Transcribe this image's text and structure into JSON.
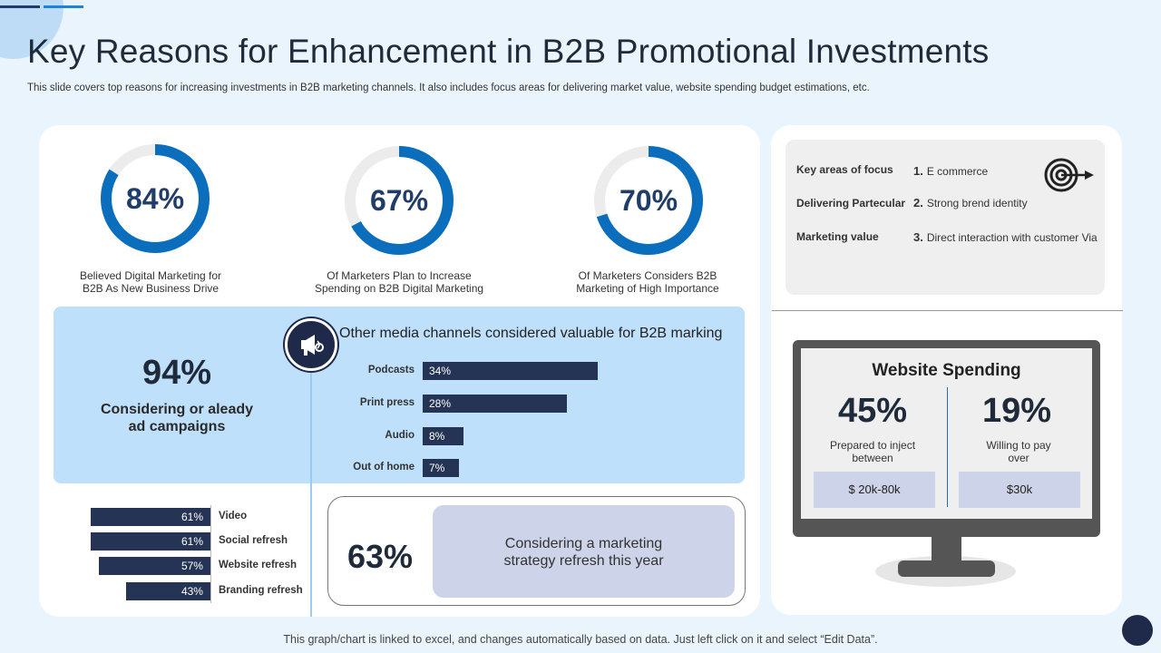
{
  "header": {
    "title": "Key Reasons for Enhancement in B2B Promotional Investments",
    "subtitle": "This slide covers top reasons for increasing investments in B2B marketing channels. It also includes focus areas for delivering market value, website spending budget estimations, etc."
  },
  "donuts": [
    {
      "value": 84,
      "label": "84%",
      "caption1": "Believed Digital Marketing for",
      "caption2": "B2B As New Business Drive"
    },
    {
      "value": 67,
      "label": "67%",
      "caption1": "Of Marketers Plan to Increase",
      "caption2": "Spending on B2B Digital Marketing"
    },
    {
      "value": 70,
      "label": "70%",
      "caption1": "Of Marketers Considers B2B",
      "caption2": "Marketing of High Importance"
    }
  ],
  "campaign": {
    "value": "94%",
    "caption1": "Considering or aleady",
    "caption2": "ad campaigns"
  },
  "media": {
    "title": "Other media channels considered valuable for B2B marking",
    "icon": "megaphone-icon"
  },
  "refresh_strategy": {
    "value": "63%",
    "caption1": "Considering a marketing",
    "caption2": "strategy refresh this year"
  },
  "focus": {
    "labels": [
      "Key areas of focus",
      "Delivering Partecular",
      "Marketing value"
    ],
    "items": [
      {
        "num": "1.",
        "text": "E commerce"
      },
      {
        "num": "2.",
        "text": "Strong brend identity"
      },
      {
        "num": "3.",
        "text": "Direct interaction with customer Via"
      }
    ],
    "icon": "target-icon"
  },
  "website_spending": {
    "title": "Website Spending",
    "left": {
      "pct": "45%",
      "caption1": "Prepared to inject",
      "caption2": "between",
      "tag": "$ 20k-80k"
    },
    "right": {
      "pct": "19%",
      "caption1": "Willing to pay",
      "caption2": "over",
      "tag": "$30k"
    }
  },
  "footer": "This graph/chart is linked to excel, and changes automatically based on data. Just left click on it and select “Edit Data”.",
  "colors": {
    "accent": "#0a6ebd",
    "navy": "#253454",
    "light_blue": "#bfe0fb"
  },
  "chart_data": [
    {
      "type": "pie",
      "subtype": "donut",
      "values": [
        84,
        67,
        70
      ],
      "labels": [
        "84%",
        "67%",
        "70%"
      ]
    },
    {
      "type": "bar",
      "orientation": "horizontal",
      "title": "Other media channels considered valuable for B2B marking",
      "categories": [
        "Podcasts",
        "Print press",
        "Audio",
        "Out of home"
      ],
      "values": [
        34,
        28,
        8,
        7
      ],
      "value_labels": [
        "34%",
        "28%",
        "8%",
        "7%"
      ],
      "xlim": [
        0,
        34
      ]
    },
    {
      "type": "bar",
      "orientation": "horizontal",
      "categories": [
        "Video",
        "Social refresh",
        "Website refresh",
        "Branding refresh"
      ],
      "values": [
        61,
        61,
        57,
        43
      ],
      "value_labels": [
        "61%",
        "61%",
        "57%",
        "43%"
      ],
      "xlim": [
        0,
        61
      ]
    }
  ]
}
